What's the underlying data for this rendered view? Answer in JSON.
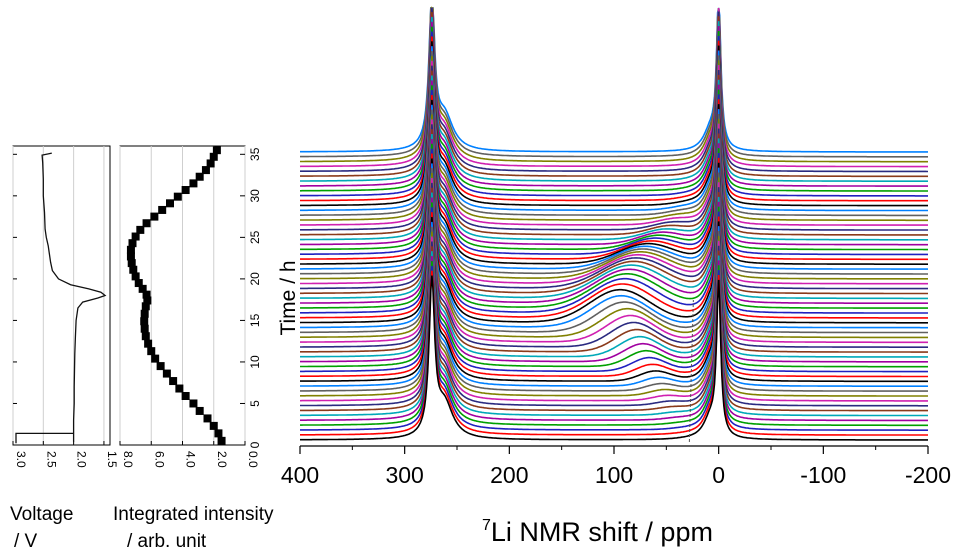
{
  "chart_data": [
    {
      "type": "line",
      "panel": "voltage",
      "xlabel": [
        "Voltage",
        "/ V"
      ],
      "ylabel": "",
      "x_ticks": [
        "3.0",
        "2.5",
        "2.0",
        "1.5"
      ],
      "xlim": [
        3.0,
        1.4
      ],
      "ylim": [
        0,
        36
      ],
      "grid": true,
      "series": [
        {
          "points": [
            [
              2.0,
              0.4
            ],
            [
              2.0,
              1.5
            ],
            [
              2.0,
              3
            ],
            [
              1.99,
              5
            ],
            [
              1.99,
              7
            ],
            [
              1.985,
              9
            ],
            [
              1.98,
              11
            ],
            [
              1.97,
              13
            ],
            [
              1.96,
              15
            ],
            [
              1.93,
              16.5
            ],
            [
              1.85,
              17.2
            ],
            [
              1.6,
              17.7
            ],
            [
              1.48,
              18.0
            ],
            [
              1.55,
              18.4
            ],
            [
              1.75,
              18.8
            ],
            [
              2.05,
              19.3
            ],
            [
              2.25,
              20.0
            ],
            [
              2.35,
              21.0
            ],
            [
              2.38,
              22
            ],
            [
              2.4,
              23
            ],
            [
              2.42,
              24
            ],
            [
              2.45,
              25
            ],
            [
              2.47,
              26
            ],
            [
              2.48,
              28
            ],
            [
              2.5,
              30
            ],
            [
              2.5,
              32
            ],
            [
              2.51,
              34
            ],
            [
              2.52,
              34.9
            ],
            [
              2.42,
              35.05
            ],
            [
              2.36,
              35.15
            ]
          ]
        },
        {
          "points": [
            [
              2.95,
              0.2
            ],
            [
              2.95,
              1.4
            ],
            [
              2.0,
              1.4
            ]
          ]
        }
      ]
    },
    {
      "type": "scatter",
      "panel": "intensity",
      "xlabel": [
        "Integrated intensity",
        "/ arb. unit"
      ],
      "ylabel": "Time / h",
      "x_ticks": [
        "8.0",
        "6.0",
        "4.0",
        "2.0",
        "0.0"
      ],
      "xlim": [
        8.0,
        0.0
      ],
      "y_ticks": [
        0,
        5,
        10,
        15,
        20,
        25,
        30,
        35
      ],
      "ylim": [
        0,
        36
      ],
      "grid": true,
      "series": [
        {
          "points": [
            [
              1.5,
              0.5
            ],
            [
              1.7,
              1.4
            ],
            [
              2.0,
              2.3
            ],
            [
              2.4,
              3.2
            ],
            [
              2.9,
              4.1
            ],
            [
              3.3,
              5.0
            ],
            [
              3.8,
              5.9
            ],
            [
              4.2,
              6.8
            ],
            [
              4.6,
              7.7
            ],
            [
              5.0,
              8.6
            ],
            [
              5.4,
              9.5
            ],
            [
              5.75,
              10.4
            ],
            [
              6.0,
              11.3
            ],
            [
              6.2,
              12.2
            ],
            [
              6.35,
              13.1
            ],
            [
              6.42,
              14.0
            ],
            [
              6.45,
              14.9
            ],
            [
              6.42,
              15.8
            ],
            [
              6.35,
              16.7
            ],
            [
              6.25,
              17.4
            ],
            [
              6.3,
              18.1
            ],
            [
              6.55,
              18.8
            ],
            [
              6.8,
              19.5
            ],
            [
              7.0,
              20.3
            ],
            [
              7.15,
              21.1
            ],
            [
              7.25,
              21.9
            ],
            [
              7.3,
              22.7
            ],
            [
              7.3,
              23.5
            ],
            [
              7.2,
              24.3
            ],
            [
              7.0,
              25.1
            ],
            [
              6.7,
              25.9
            ],
            [
              6.3,
              26.7
            ],
            [
              5.8,
              27.5
            ],
            [
              5.3,
              28.3
            ],
            [
              4.8,
              29.1
            ],
            [
              4.3,
              29.9
            ],
            [
              3.8,
              30.7
            ],
            [
              3.3,
              31.5
            ],
            [
              2.9,
              32.3
            ],
            [
              2.5,
              33.1
            ],
            [
              2.2,
              33.9
            ],
            [
              2.0,
              34.7
            ],
            [
              1.8,
              35.5
            ]
          ]
        }
      ]
    },
    {
      "type": "line",
      "panel": "nmr-stack",
      "xlabel_sup": "7",
      "xlabel_main": "Li NMR shift / ppm",
      "x_ticks": [
        "400",
        "300",
        "200",
        "100",
        "0",
        "-100",
        "-200"
      ],
      "xlim": [
        400,
        -200
      ],
      "trace_count": 60,
      "trace_colors": [
        "#000000",
        "#ff0000",
        "#2020c0",
        "#00a000",
        "#a000a0",
        "#00a8b8",
        "#8a3a1a",
        "#2a2a80",
        "#d020b0",
        "#808000",
        "#606060",
        "#0080ff"
      ],
      "peak_a_ppm": 274,
      "peak_b_ppm": 0,
      "transient_peak_ppm": [
        28,
        60,
        95,
        70,
        30,
        10
      ]
    }
  ]
}
